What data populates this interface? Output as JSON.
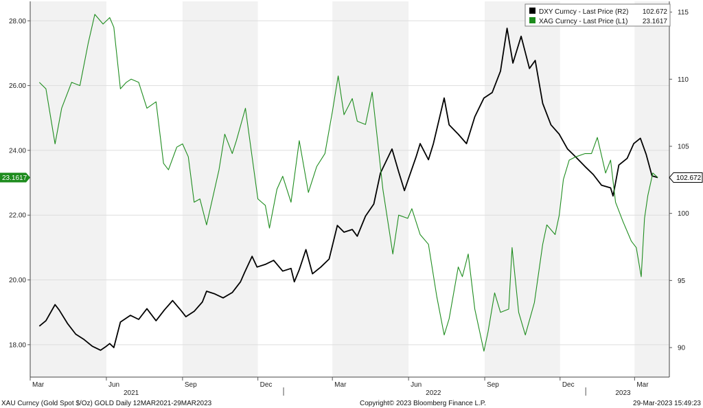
{
  "chart_data": {
    "type": "line",
    "x_range": [
      "2021-03-12",
      "2023-03-29"
    ],
    "xlim": [
      "2021-03-01",
      "2023-04-12"
    ],
    "colors": {
      "dxy": "#000000",
      "xag": "#1e8c1e",
      "grid_alt": "#f2f2f2"
    },
    "left_axis": {
      "ylim": [
        17.0,
        28.6
      ],
      "ticks": [
        "18.00",
        "20.00",
        "22.00",
        "24.00",
        "26.00",
        "28.00"
      ]
    },
    "right_axis": {
      "ylim": [
        87.8,
        115.8
      ],
      "ticks": [
        "90",
        "95",
        "100",
        "105",
        "110",
        "115"
      ]
    },
    "month_ticks": [
      {
        "date": "2021-03-01",
        "label": "Mar"
      },
      {
        "date": "2021-06-01",
        "label": "Jun"
      },
      {
        "date": "2021-09-01",
        "label": "Sep"
      },
      {
        "date": "2021-12-01",
        "label": "Dec"
      },
      {
        "date": "2022-03-01",
        "label": "Mar"
      },
      {
        "date": "2022-06-01",
        "label": "Jun"
      },
      {
        "date": "2022-09-01",
        "label": "Sep"
      },
      {
        "date": "2022-12-01",
        "label": "Dec"
      },
      {
        "date": "2023-03-01",
        "label": "Mar"
      }
    ],
    "year_labels": [
      {
        "date": "2021-07-01",
        "label": "2021"
      },
      {
        "date": "2022-07-01",
        "label": "2022"
      },
      {
        "date": "2023-02-15",
        "label": "2023"
      }
    ],
    "year_dividers": [
      "2022-01-01",
      "2023-01-01"
    ],
    "series": [
      {
        "name": "DXY Curncy - Last Price (R2)",
        "last": "102.672",
        "axis": "right",
        "points": [
          [
            "2021-03-12",
            91.6
          ],
          [
            "2021-03-20",
            92.0
          ],
          [
            "2021-03-31",
            93.2
          ],
          [
            "2021-04-05",
            92.8
          ],
          [
            "2021-04-15",
            91.8
          ],
          [
            "2021-04-25",
            91.0
          ],
          [
            "2021-05-05",
            90.6
          ],
          [
            "2021-05-15",
            90.1
          ],
          [
            "2021-05-25",
            89.8
          ],
          [
            "2021-06-01",
            90.1
          ],
          [
            "2021-06-05",
            90.3
          ],
          [
            "2021-06-10",
            90.0
          ],
          [
            "2021-06-18",
            91.9
          ],
          [
            "2021-06-30",
            92.4
          ],
          [
            "2021-07-10",
            92.1
          ],
          [
            "2021-07-20",
            92.9
          ],
          [
            "2021-07-31",
            92.0
          ],
          [
            "2021-08-10",
            92.8
          ],
          [
            "2021-08-20",
            93.5
          ],
          [
            "2021-08-31",
            92.7
          ],
          [
            "2021-09-05",
            92.3
          ],
          [
            "2021-09-15",
            92.7
          ],
          [
            "2021-09-25",
            93.4
          ],
          [
            "2021-09-30",
            94.2
          ],
          [
            "2021-10-10",
            94.0
          ],
          [
            "2021-10-20",
            93.7
          ],
          [
            "2021-10-31",
            94.1
          ],
          [
            "2021-11-10",
            94.9
          ],
          [
            "2021-11-15",
            95.6
          ],
          [
            "2021-11-24",
            96.8
          ],
          [
            "2021-11-30",
            96.0
          ],
          [
            "2021-12-10",
            96.2
          ],
          [
            "2021-12-20",
            96.5
          ],
          [
            "2021-12-31",
            95.7
          ],
          [
            "2022-01-10",
            95.9
          ],
          [
            "2022-01-14",
            94.9
          ],
          [
            "2022-01-20",
            95.8
          ],
          [
            "2022-01-28",
            97.3
          ],
          [
            "2022-02-05",
            95.5
          ],
          [
            "2022-02-15",
            96.0
          ],
          [
            "2022-02-25",
            96.6
          ],
          [
            "2022-03-07",
            99.1
          ],
          [
            "2022-03-15",
            98.6
          ],
          [
            "2022-03-25",
            98.8
          ],
          [
            "2022-03-31",
            98.3
          ],
          [
            "2022-04-10",
            99.8
          ],
          [
            "2022-04-20",
            100.7
          ],
          [
            "2022-04-28",
            103.0
          ],
          [
            "2022-05-12",
            104.8
          ],
          [
            "2022-05-20",
            103.1
          ],
          [
            "2022-05-27",
            101.7
          ],
          [
            "2022-06-01",
            102.6
          ],
          [
            "2022-06-10",
            104.2
          ],
          [
            "2022-06-15",
            105.2
          ],
          [
            "2022-06-25",
            104.0
          ],
          [
            "2022-07-01",
            105.2
          ],
          [
            "2022-07-14",
            108.6
          ],
          [
            "2022-07-20",
            106.6
          ],
          [
            "2022-07-31",
            105.9
          ],
          [
            "2022-08-10",
            105.2
          ],
          [
            "2022-08-20",
            107.2
          ],
          [
            "2022-08-31",
            108.6
          ],
          [
            "2022-09-10",
            109.0
          ],
          [
            "2022-09-20",
            110.6
          ],
          [
            "2022-09-28",
            113.8
          ],
          [
            "2022-10-05",
            111.2
          ],
          [
            "2022-10-15",
            113.2
          ],
          [
            "2022-10-25",
            110.8
          ],
          [
            "2022-11-01",
            111.4
          ],
          [
            "2022-11-10",
            108.2
          ],
          [
            "2022-11-20",
            106.6
          ],
          [
            "2022-11-30",
            105.9
          ],
          [
            "2022-12-10",
            104.8
          ],
          [
            "2022-12-20",
            104.2
          ],
          [
            "2022-12-31",
            103.5
          ],
          [
            "2023-01-10",
            102.9
          ],
          [
            "2023-01-20",
            102.1
          ],
          [
            "2023-01-31",
            101.9
          ],
          [
            "2023-02-03",
            101.3
          ],
          [
            "2023-02-10",
            103.6
          ],
          [
            "2023-02-20",
            104.1
          ],
          [
            "2023-02-28",
            105.2
          ],
          [
            "2023-03-08",
            105.6
          ],
          [
            "2023-03-15",
            104.4
          ],
          [
            "2023-03-22",
            102.8
          ],
          [
            "2023-03-29",
            102.672
          ]
        ]
      },
      {
        "name": "XAG Curncy - Last Price (L1)",
        "last": "23.1617",
        "axis": "left",
        "points": [
          [
            "2021-03-12",
            26.1
          ],
          [
            "2021-03-20",
            25.9
          ],
          [
            "2021-03-31",
            24.2
          ],
          [
            "2021-04-08",
            25.3
          ],
          [
            "2021-04-20",
            26.1
          ],
          [
            "2021-04-30",
            26.0
          ],
          [
            "2021-05-10",
            27.3
          ],
          [
            "2021-05-18",
            28.2
          ],
          [
            "2021-05-28",
            27.9
          ],
          [
            "2021-06-05",
            28.1
          ],
          [
            "2021-06-10",
            27.8
          ],
          [
            "2021-06-18",
            25.9
          ],
          [
            "2021-06-25",
            26.1
          ],
          [
            "2021-07-01",
            26.2
          ],
          [
            "2021-07-10",
            26.1
          ],
          [
            "2021-07-20",
            25.3
          ],
          [
            "2021-07-31",
            25.5
          ],
          [
            "2021-08-09",
            23.6
          ],
          [
            "2021-08-15",
            23.4
          ],
          [
            "2021-08-25",
            24.1
          ],
          [
            "2021-09-01",
            24.2
          ],
          [
            "2021-09-08",
            23.8
          ],
          [
            "2021-09-15",
            22.4
          ],
          [
            "2021-09-22",
            22.5
          ],
          [
            "2021-09-30",
            21.7
          ],
          [
            "2021-10-08",
            22.6
          ],
          [
            "2021-10-15",
            23.4
          ],
          [
            "2021-10-22",
            24.5
          ],
          [
            "2021-10-31",
            23.9
          ],
          [
            "2021-11-05",
            24.3
          ],
          [
            "2021-11-16",
            25.3
          ],
          [
            "2021-11-24",
            23.8
          ],
          [
            "2021-12-01",
            22.5
          ],
          [
            "2021-12-10",
            22.3
          ],
          [
            "2021-12-15",
            21.6
          ],
          [
            "2021-12-24",
            22.8
          ],
          [
            "2021-12-31",
            23.2
          ],
          [
            "2022-01-10",
            22.4
          ],
          [
            "2022-01-20",
            24.3
          ],
          [
            "2022-01-31",
            22.7
          ],
          [
            "2022-02-10",
            23.5
          ],
          [
            "2022-02-20",
            23.9
          ],
          [
            "2022-03-01",
            25.2
          ],
          [
            "2022-03-08",
            26.3
          ],
          [
            "2022-03-15",
            25.1
          ],
          [
            "2022-03-25",
            25.6
          ],
          [
            "2022-03-31",
            24.9
          ],
          [
            "2022-04-10",
            24.8
          ],
          [
            "2022-04-18",
            25.8
          ],
          [
            "2022-04-25",
            24.2
          ],
          [
            "2022-05-01",
            22.8
          ],
          [
            "2022-05-10",
            21.3
          ],
          [
            "2022-05-13",
            20.8
          ],
          [
            "2022-05-20",
            22.0
          ],
          [
            "2022-05-31",
            21.9
          ],
          [
            "2022-06-05",
            22.2
          ],
          [
            "2022-06-15",
            21.4
          ],
          [
            "2022-06-25",
            21.1
          ],
          [
            "2022-06-30",
            20.3
          ],
          [
            "2022-07-05",
            19.5
          ],
          [
            "2022-07-14",
            18.3
          ],
          [
            "2022-07-20",
            18.8
          ],
          [
            "2022-07-31",
            20.4
          ],
          [
            "2022-08-05",
            20.1
          ],
          [
            "2022-08-12",
            20.8
          ],
          [
            "2022-08-20",
            19.1
          ],
          [
            "2022-08-31",
            17.8
          ],
          [
            "2022-09-05",
            18.4
          ],
          [
            "2022-09-13",
            19.6
          ],
          [
            "2022-09-20",
            19.0
          ],
          [
            "2022-09-30",
            19.1
          ],
          [
            "2022-10-04",
            21.0
          ],
          [
            "2022-10-12",
            19.0
          ],
          [
            "2022-10-20",
            18.3
          ],
          [
            "2022-10-31",
            19.3
          ],
          [
            "2022-11-10",
            21.1
          ],
          [
            "2022-11-15",
            21.7
          ],
          [
            "2022-11-25",
            21.4
          ],
          [
            "2022-11-30",
            22.0
          ],
          [
            "2022-12-05",
            23.1
          ],
          [
            "2022-12-12",
            23.7
          ],
          [
            "2022-12-20",
            23.8
          ],
          [
            "2022-12-31",
            23.9
          ],
          [
            "2023-01-08",
            23.9
          ],
          [
            "2023-01-15",
            24.4
          ],
          [
            "2023-01-25",
            23.3
          ],
          [
            "2023-01-31",
            23.7
          ],
          [
            "2023-02-06",
            22.4
          ],
          [
            "2023-02-15",
            21.8
          ],
          [
            "2023-02-25",
            21.2
          ],
          [
            "2023-03-03",
            21.0
          ],
          [
            "2023-03-09",
            20.1
          ],
          [
            "2023-03-13",
            21.9
          ],
          [
            "2023-03-17",
            22.6
          ],
          [
            "2023-03-23",
            23.3
          ],
          [
            "2023-03-29",
            23.1617
          ]
        ]
      }
    ]
  },
  "footer": {
    "left": "XAU Curncy (Gold Spot  $/Oz) GOLD  Daily 12MAR2021-29MAR2023",
    "center": "Copyright© 2023 Bloomberg Finance L.P.",
    "right": "29-Mar-2023 15:49:23"
  }
}
